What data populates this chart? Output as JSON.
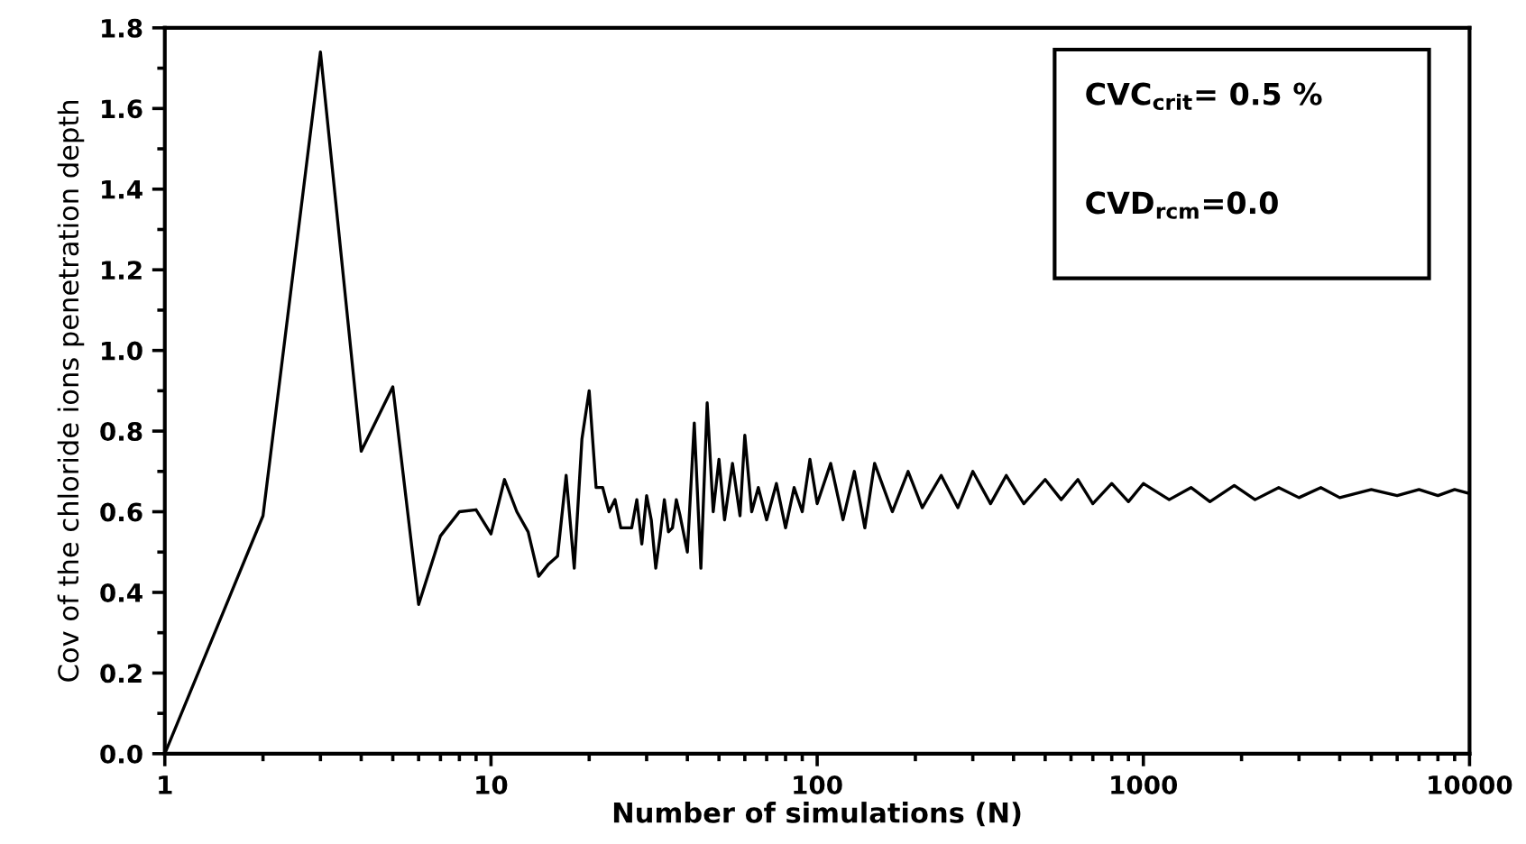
{
  "chart_data": {
    "type": "line",
    "xlabel": "Number of simulations (N)",
    "ylabel": "Cov of the chloride ions penetration depth",
    "log": "x",
    "xlim": [
      1,
      10000
    ],
    "xticks": [
      1,
      10,
      100,
      1000,
      10000
    ],
    "ylim": [
      0,
      1.8
    ],
    "yticks": [
      {
        "value": 0,
        "label": "0.0"
      },
      0.2,
      0.4,
      0.6,
      0.8,
      {
        "value": 1,
        "label": "1.0"
      },
      1.2,
      1.4,
      1.6,
      1.8
    ],
    "grid": false,
    "legend": false,
    "marker": "none",
    "line_style": "solid",
    "annotations": [
      "CVC$_{crit}$= 0.5 %",
      "CVD$_{rcm}$=0.0"
    ],
    "series": [
      {
        "color": "#000000",
        "x": [
          1,
          2,
          3,
          4,
          5,
          6,
          7,
          8,
          9,
          10,
          11,
          12,
          13,
          14,
          15,
          16,
          17,
          18,
          19,
          20,
          21,
          22,
          23,
          24,
          25,
          26,
          27,
          28,
          29,
          30,
          31,
          32,
          33,
          34,
          35,
          36,
          37,
          38,
          40,
          42,
          44,
          46,
          48,
          50,
          52,
          55,
          58,
          60,
          63,
          66,
          70,
          75,
          80,
          85,
          90,
          95,
          100,
          110,
          120,
          130,
          140,
          150,
          170,
          190,
          210,
          240,
          270,
          300,
          340,
          380,
          430,
          500,
          560,
          630,
          700,
          800,
          900,
          1000,
          1200,
          1400,
          1600,
          1900,
          2200,
          2600,
          3000,
          3500,
          4000,
          5000,
          6000,
          7000,
          8000,
          9000,
          10000
        ],
        "values": [
          0,
          0.59,
          1.74,
          0.75,
          0.91,
          0.37,
          0.54,
          0.6,
          0.605,
          0.545,
          0.68,
          0.6,
          0.55,
          0.44,
          0.47,
          0.49,
          0.69,
          0.46,
          0.78,
          0.9,
          0.66,
          0.66,
          0.6,
          0.63,
          0.56,
          0.56,
          0.56,
          0.63,
          0.52,
          0.64,
          0.58,
          0.46,
          0.54,
          0.63,
          0.55,
          0.56,
          0.63,
          0.59,
          0.5,
          0.82,
          0.46,
          0.87,
          0.6,
          0.73,
          0.58,
          0.72,
          0.59,
          0.79,
          0.6,
          0.66,
          0.58,
          0.67,
          0.56,
          0.66,
          0.6,
          0.73,
          0.62,
          0.72,
          0.58,
          0.7,
          0.56,
          0.72,
          0.6,
          0.7,
          0.61,
          0.69,
          0.61,
          0.7,
          0.62,
          0.69,
          0.62,
          0.68,
          0.63,
          0.68,
          0.62,
          0.67,
          0.625,
          0.67,
          0.63,
          0.66,
          0.625,
          0.665,
          0.63,
          0.66,
          0.635,
          0.66,
          0.635,
          0.655,
          0.64,
          0.655,
          0.64,
          0.655,
          0.645
        ]
      }
    ]
  }
}
